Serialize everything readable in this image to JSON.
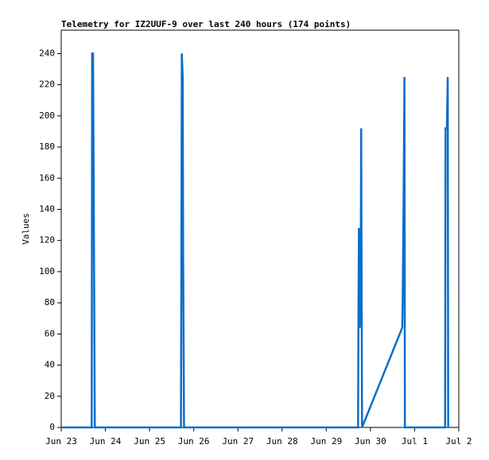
{
  "chart_data": {
    "type": "line",
    "title": "Telemetry for IZ2UUF-9 over last 240 hours (174 points)",
    "y_label": "Values",
    "x": [
      0,
      0.69,
      0.7,
      0.72,
      0.74,
      0.76,
      2.71,
      2.72,
      2.73,
      2.75,
      2.76,
      2.78,
      6.72,
      6.73,
      6.74,
      6.76,
      6.78,
      6.79,
      6.81,
      7.72,
      7.73,
      7.75,
      7.77,
      7.78,
      8.69,
      8.7,
      8.73,
      8.75,
      8.76
    ],
    "series": [
      {
        "color": "#0a6ecb",
        "values": [
          0,
          0,
          240,
          240,
          128,
          0,
          0,
          104,
          240,
          225,
          112,
          0,
          0,
          80,
          128,
          64,
          97,
          192,
          0,
          64,
          80,
          145,
          225,
          0,
          0,
          192,
          192,
          225,
          0
        ]
      }
    ],
    "xlim": [
      0,
      9
    ],
    "xticks": [
      {
        "value": 0,
        "label": "Jun 23"
      },
      {
        "value": 1,
        "label": "Jun 24"
      },
      {
        "value": 2,
        "label": "Jun 25"
      },
      {
        "value": 3,
        "label": "Jun 26"
      },
      {
        "value": 4,
        "label": "Jun 27"
      },
      {
        "value": 5,
        "label": "Jun 28"
      },
      {
        "value": 6,
        "label": "Jun 29"
      },
      {
        "value": 7,
        "label": "Jun 30"
      },
      {
        "value": 8,
        "label": "Jul 1"
      },
      {
        "value": 9,
        "label": "Jul 2"
      }
    ],
    "ylim": [
      0,
      255
    ],
    "yticks": [
      0,
      20,
      40,
      60,
      80,
      100,
      120,
      140,
      160,
      180,
      200,
      220,
      240
    ]
  }
}
